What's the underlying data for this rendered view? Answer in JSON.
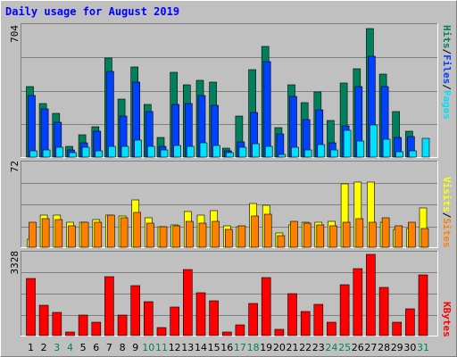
{
  "title": "Daily usage for August 2019",
  "legend": {
    "pages": "Pages",
    "files": "Files",
    "hits": "Hits",
    "sites": "Sites",
    "visits": "Visits",
    "kbytes": "KBytes",
    "separator": "/"
  },
  "axis_max": {
    "hits": "704",
    "visits": "72",
    "kbytes": "3328"
  },
  "colors": {
    "background": "#c0c0c0",
    "title": "#0000ff",
    "hits": "#00805c",
    "files": "#0040ff",
    "pages": "#00e0ff",
    "visits": "#ffff00",
    "sites": "#ff8000",
    "kbytes": "#ff0000",
    "weekend_label": "#00805c",
    "day_label": "#000000"
  },
  "chart_data": [
    {
      "type": "bar",
      "title": "Daily usage for August 2019",
      "categories": [
        "1",
        "2",
        "3",
        "4",
        "5",
        "6",
        "7",
        "8",
        "9",
        "10",
        "11",
        "12",
        "13",
        "14",
        "15",
        "16",
        "17",
        "18",
        "19",
        "20",
        "21",
        "22",
        "23",
        "24",
        "25",
        "26",
        "27",
        "28",
        "29",
        "30",
        "31"
      ],
      "weekend_days": [
        "3",
        "4",
        "10",
        "11",
        "17",
        "18",
        "24",
        "25",
        "31"
      ],
      "ylim": [
        0,
        704
      ],
      "series": [
        {
          "name": "Hits",
          "values": [
            375,
            285,
            230,
            55,
            120,
            160,
            525,
            305,
            475,
            280,
            105,
            450,
            385,
            405,
            395,
            45,
            215,
            465,
            585,
            155,
            385,
            290,
            345,
            195,
            390,
            470,
            680,
            440,
            240,
            135,
            0
          ]
        },
        {
          "name": "Files",
          "values": [
            325,
            255,
            185,
            40,
            75,
            135,
            455,
            215,
            395,
            240,
            55,
            280,
            285,
            325,
            275,
            35,
            80,
            235,
            505,
            125,
            320,
            200,
            250,
            75,
            165,
            375,
            535,
            375,
            105,
            110,
            0
          ]
        },
        {
          "name": "Pages",
          "values": [
            35,
            40,
            50,
            25,
            50,
            35,
            55,
            55,
            90,
            55,
            40,
            60,
            55,
            75,
            60,
            25,
            50,
            70,
            55,
            15,
            50,
            40,
            65,
            40,
            140,
            85,
            170,
            95,
            30,
            35,
            100
          ]
        }
      ]
    },
    {
      "type": "bar",
      "categories": [
        "1",
        "2",
        "3",
        "4",
        "5",
        "6",
        "7",
        "8",
        "9",
        "10",
        "11",
        "12",
        "13",
        "14",
        "15",
        "16",
        "17",
        "18",
        "19",
        "20",
        "21",
        "22",
        "23",
        "24",
        "25",
        "26",
        "27",
        "28",
        "29",
        "30",
        "31"
      ],
      "ylim": [
        0,
        72
      ],
      "series": [
        {
          "name": "Visits",
          "values": [
            7,
            27,
            27,
            21,
            21,
            23,
            27,
            26,
            40,
            25,
            17,
            19,
            30,
            27,
            31,
            18,
            17,
            37,
            35,
            12,
            19,
            21,
            21,
            22,
            53,
            55,
            55,
            21,
            15,
            16,
            33
          ]
        },
        {
          "name": "Sites",
          "values": [
            21,
            24,
            23,
            18,
            21,
            21,
            27,
            25,
            29,
            20,
            17,
            18,
            22,
            20,
            22,
            15,
            18,
            26,
            28,
            10,
            22,
            20,
            19,
            18,
            21,
            24,
            21,
            25,
            18,
            21,
            16
          ]
        }
      ]
    },
    {
      "type": "bar",
      "categories": [
        "1",
        "2",
        "3",
        "4",
        "5",
        "6",
        "7",
        "8",
        "9",
        "10",
        "11",
        "12",
        "13",
        "14",
        "15",
        "16",
        "17",
        "18",
        "19",
        "20",
        "21",
        "22",
        "23",
        "24",
        "25",
        "26",
        "27",
        "28",
        "29",
        "30",
        "31"
      ],
      "ylim": [
        0,
        3328
      ],
      "series": [
        {
          "name": "KBytes",
          "values": [
            2260,
            1215,
            920,
            155,
            815,
            525,
            2330,
            825,
            1995,
            1335,
            315,
            1125,
            2635,
            1690,
            1365,
            130,
            410,
            1260,
            2310,
            250,
            1660,
            945,
            1255,
            545,
            2010,
            2665,
            3220,
            1910,
            540,
            1070,
            2400
          ]
        }
      ]
    }
  ]
}
